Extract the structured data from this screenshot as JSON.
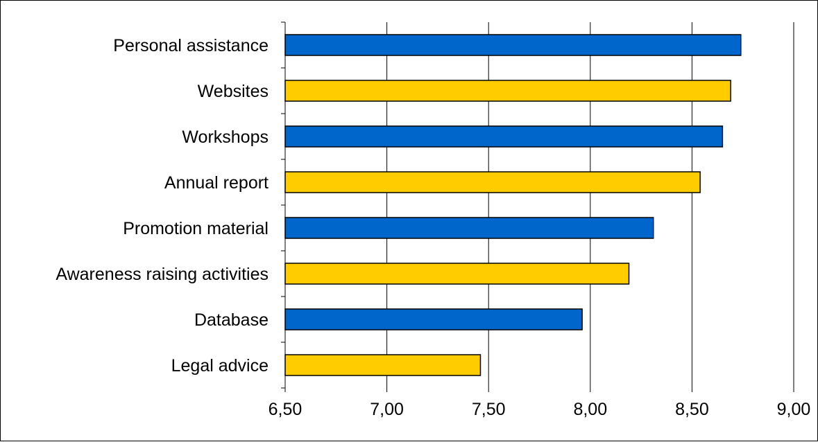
{
  "chart_data": {
    "type": "bar",
    "orientation": "horizontal",
    "title": "",
    "xlabel": "",
    "ylabel": "",
    "categories": [
      "Personal assistance",
      "Websites",
      "Workshops",
      "Annual report",
      "Promotion material",
      "Awareness raising activities",
      "Database",
      "Legal advice"
    ],
    "values": [
      8.74,
      8.69,
      8.65,
      8.54,
      8.31,
      8.19,
      7.96,
      7.46
    ],
    "bar_colors": [
      "#0066CC",
      "#FFCC00",
      "#0066CC",
      "#FFCC00",
      "#0066CC",
      "#FFCC00",
      "#0066CC",
      "#FFCC00"
    ],
    "xlim": [
      6.5,
      9.0
    ],
    "x_ticks": [
      6.5,
      7.0,
      7.5,
      8.0,
      8.5,
      9.0
    ],
    "x_tick_labels": [
      "6,50",
      "7,00",
      "7,50",
      "8,00",
      "8,50",
      "9,00"
    ],
    "grid": "vertical",
    "legend": "none"
  }
}
